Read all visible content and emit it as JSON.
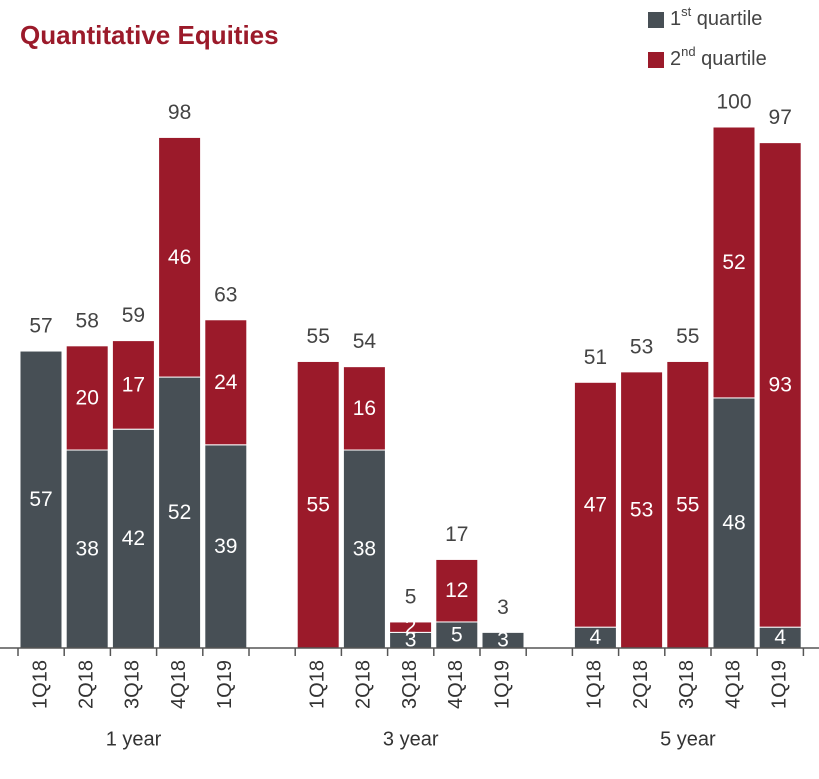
{
  "chart_data": {
    "type": "stacked-bar",
    "title": "Quantitative Equities",
    "categories": [
      "1Q18",
      "2Q18",
      "3Q18",
      "4Q18",
      "1Q19",
      "1Q18",
      "2Q18",
      "3Q18",
      "4Q18",
      "1Q19",
      "1Q18",
      "2Q18",
      "3Q18",
      "4Q18",
      "1Q19"
    ],
    "category_groups": [
      "1 year",
      "3 year",
      "5 year"
    ],
    "series": [
      {
        "name": "1st quartile",
        "color": "#474f55",
        "values": [
          57,
          38,
          42,
          52,
          39,
          null,
          38,
          3,
          5,
          3,
          4,
          null,
          null,
          48,
          4
        ]
      },
      {
        "name": "2nd quartile",
        "color": "#9b1a2a",
        "values": [
          null,
          20,
          17,
          46,
          24,
          55,
          16,
          2,
          12,
          null,
          47,
          53,
          55,
          52,
          93
        ]
      }
    ],
    "totals": [
      57,
      58,
      59,
      98,
      63,
      55,
      54,
      5,
      17,
      3,
      51,
      53,
      55,
      100,
      97
    ],
    "ylim": [
      0,
      100
    ]
  }
}
